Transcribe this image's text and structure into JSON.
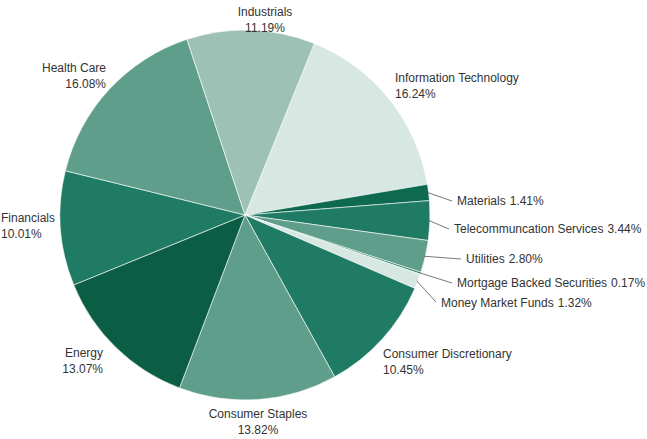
{
  "chart_data": {
    "type": "pie",
    "categories": [
      "Information Technology",
      "Materials",
      "Telecommuncation Services",
      "Utilities",
      "Mortgage Backed Securities",
      "Money Market Funds",
      "Consumer Discretionary",
      "Consumer Staples",
      "Energy",
      "Financials",
      "Health Care",
      "Industrials"
    ],
    "values": [
      16.24,
      1.41,
      3.44,
      2.8,
      0.17,
      1.32,
      10.45,
      13.82,
      13.07,
      10.01,
      16.08,
      11.19
    ],
    "value_labels": [
      "16.24%",
      "1.41%",
      "3.44%",
      "2.80%",
      "0.17%",
      "1.32%",
      "10.45%",
      "13.82%",
      "13.07%",
      "10.01%",
      "16.08%",
      "11.19%"
    ],
    "colors": [
      "#d7e7e2",
      "#0e6a4f",
      "#1f7b63",
      "#5e9e8b",
      "#1f7b63",
      "#d7e7e2",
      "#1f7b63",
      "#5e9e8b",
      "#0b5d44",
      "#1f7b63",
      "#5e9e8b",
      "#9dc1b5"
    ],
    "data_labels": true
  }
}
